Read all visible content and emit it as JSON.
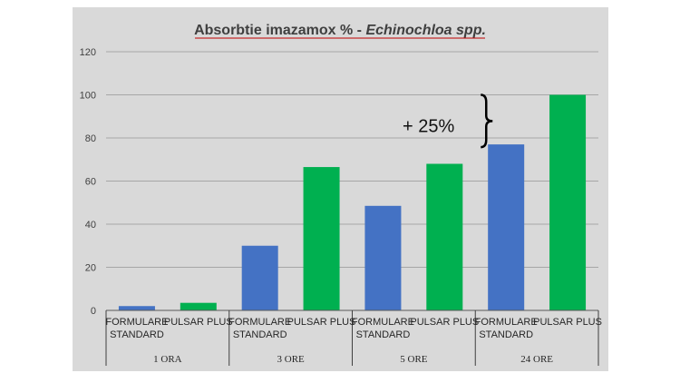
{
  "chart_data": {
    "type": "bar",
    "title": "Absorbtie imazamox % - Echinochloa spp.",
    "title_parts": {
      "main": "Absorbtie imazamox % - ",
      "italic": "Echinochloa spp."
    },
    "xlabel": "",
    "ylabel": "",
    "ylim": [
      0,
      120
    ],
    "yticks": [
      "0",
      "20",
      "40",
      "60",
      "80",
      "100",
      "120"
    ],
    "grid": true,
    "legend": "none",
    "groups": [
      "1 ORA",
      "3 ORE",
      "5 ORE",
      "24 ORE"
    ],
    "subcategories": [
      "FORMULARE STANDARD",
      "PULSAR PLUS"
    ],
    "colors": [
      "#4472c4",
      "#00b050"
    ],
    "values": [
      [
        2,
        3.5
      ],
      [
        30,
        66.5
      ],
      [
        48.5,
        68
      ],
      [
        77,
        100
      ]
    ],
    "annotation": {
      "text": "+ 25%",
      "group": 3
    }
  }
}
